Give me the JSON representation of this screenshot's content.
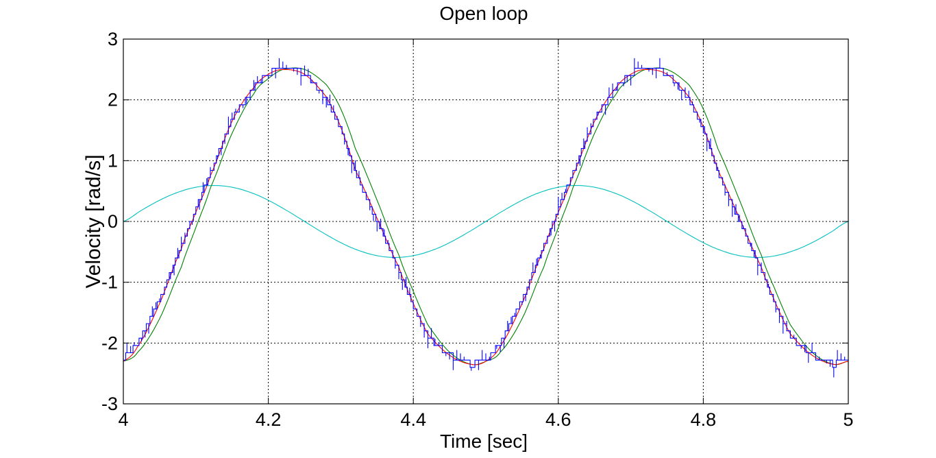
{
  "chart_data": {
    "type": "line",
    "title": "Open loop",
    "xlabel": "Time [sec]",
    "ylabel": "Velocity [rad/s]",
    "xlim": [
      4,
      5
    ],
    "ylim": [
      -3,
      3
    ],
    "xticks": [
      4,
      4.2,
      4.4,
      4.6,
      4.8,
      5
    ],
    "xtick_labels": [
      "4",
      "4.2",
      "4.4",
      "4.6",
      "4.8",
      "5"
    ],
    "yticks": [
      -3,
      -2,
      -1,
      0,
      1,
      2,
      3
    ],
    "ytick_labels": [
      "-3",
      "-2",
      "-1",
      "0",
      "1",
      "2",
      "3"
    ],
    "grid": true,
    "legend": "none",
    "colors": {
      "measured": "#0000ff",
      "filtered": "#ff0000",
      "reference": "#008000",
      "input": "#00bfbf",
      "grid": "#000000",
      "axes": "#000000"
    },
    "series": [
      {
        "color": "#0000ff",
        "style": "quantized with dense vertical spikes",
        "x": [
          4.0,
          4.02,
          4.05,
          4.08,
          4.1,
          4.12,
          4.15,
          4.18,
          4.2,
          4.22,
          4.25,
          4.28,
          4.3,
          4.32,
          4.35,
          4.38,
          4.4,
          4.42,
          4.45,
          4.48,
          4.5,
          4.52,
          4.55,
          4.58,
          4.6,
          4.62,
          4.65,
          4.68,
          4.7,
          4.72,
          4.75,
          4.78,
          4.8,
          4.82,
          4.85,
          4.88,
          4.9,
          4.92,
          4.95,
          4.98,
          5.0
        ],
        "values": [
          -2.25,
          -2.0,
          -1.3,
          -0.4,
          0.2,
          0.8,
          1.7,
          2.2,
          2.45,
          2.5,
          2.45,
          2.0,
          1.5,
          0.8,
          0.0,
          -0.8,
          -1.4,
          -1.9,
          -2.2,
          -2.35,
          -2.3,
          -2.0,
          -1.3,
          -0.4,
          0.2,
          0.8,
          1.7,
          2.2,
          2.45,
          2.5,
          2.45,
          2.0,
          1.5,
          0.8,
          0.0,
          -0.8,
          -1.4,
          -1.9,
          -2.2,
          -2.35,
          -2.25
        ]
      },
      {
        "color": "#ff0000",
        "style": "smooth",
        "x": [
          4.0,
          4.02,
          4.05,
          4.08,
          4.1,
          4.12,
          4.15,
          4.18,
          4.2,
          4.22,
          4.25,
          4.28,
          4.3,
          4.32,
          4.35,
          4.38,
          4.4,
          4.42,
          4.45,
          4.48,
          4.5,
          4.52,
          4.55,
          4.58,
          4.6,
          4.62,
          4.65,
          4.68,
          4.7,
          4.72,
          4.75,
          4.78,
          4.8,
          4.82,
          4.85,
          4.88,
          4.9,
          4.92,
          4.95,
          4.98,
          5.0
        ],
        "values": [
          -2.3,
          -2.05,
          -1.35,
          -0.45,
          0.15,
          0.75,
          1.65,
          2.2,
          2.42,
          2.5,
          2.42,
          2.05,
          1.55,
          0.85,
          0.05,
          -0.75,
          -1.35,
          -1.85,
          -2.2,
          -2.35,
          -2.3,
          -2.05,
          -1.35,
          -0.45,
          0.15,
          0.75,
          1.65,
          2.2,
          2.42,
          2.5,
          2.42,
          2.05,
          1.55,
          0.85,
          0.05,
          -0.75,
          -1.35,
          -1.85,
          -2.2,
          -2.35,
          -2.3
        ]
      },
      {
        "color": "#008000",
        "style": "smooth",
        "x": [
          4.0,
          4.02,
          4.05,
          4.08,
          4.1,
          4.12,
          4.15,
          4.18,
          4.2,
          4.22,
          4.25,
          4.28,
          4.3,
          4.32,
          4.35,
          4.38,
          4.4,
          4.42,
          4.45,
          4.48,
          4.5,
          4.52,
          4.55,
          4.58,
          4.6,
          4.62,
          4.65,
          4.68,
          4.7,
          4.72,
          4.75,
          4.78,
          4.8,
          4.82,
          4.85,
          4.88,
          4.9,
          4.92,
          4.95,
          4.98,
          5.0
        ],
        "values": [
          -2.3,
          -2.15,
          -1.6,
          -0.75,
          -0.1,
          0.55,
          1.45,
          2.1,
          2.35,
          2.5,
          2.5,
          2.25,
          1.85,
          1.2,
          0.35,
          -0.55,
          -1.15,
          -1.7,
          -2.15,
          -2.35,
          -2.3,
          -2.15,
          -1.6,
          -0.75,
          -0.1,
          0.55,
          1.45,
          2.1,
          2.35,
          2.5,
          2.5,
          2.25,
          1.85,
          1.2,
          0.35,
          -0.55,
          -1.15,
          -1.7,
          -2.15,
          -2.35,
          -2.3
        ]
      },
      {
        "color": "#00bfbf",
        "style": "smooth",
        "x": [
          4.0,
          4.025,
          4.05,
          4.075,
          4.1,
          4.125,
          4.15,
          4.175,
          4.2,
          4.225,
          4.25,
          4.275,
          4.3,
          4.325,
          4.35,
          4.375,
          4.4,
          4.425,
          4.45,
          4.475,
          4.5,
          4.525,
          4.55,
          4.575,
          4.6,
          4.625,
          4.65,
          4.675,
          4.7,
          4.725,
          4.75,
          4.775,
          4.8,
          4.825,
          4.85,
          4.875,
          4.9,
          4.925,
          4.95,
          4.975,
          5.0
        ],
        "values": [
          0.0,
          0.183,
          0.349,
          0.479,
          0.563,
          0.592,
          0.563,
          0.479,
          0.349,
          0.183,
          0.0,
          -0.183,
          -0.349,
          -0.479,
          -0.563,
          -0.592,
          -0.563,
          -0.479,
          -0.349,
          -0.183,
          0.0,
          0.183,
          0.349,
          0.479,
          0.563,
          0.592,
          0.563,
          0.479,
          0.349,
          0.183,
          0.0,
          -0.183,
          -0.349,
          -0.479,
          -0.563,
          -0.592,
          -0.563,
          -0.479,
          -0.349,
          -0.183,
          0.0
        ]
      }
    ]
  }
}
